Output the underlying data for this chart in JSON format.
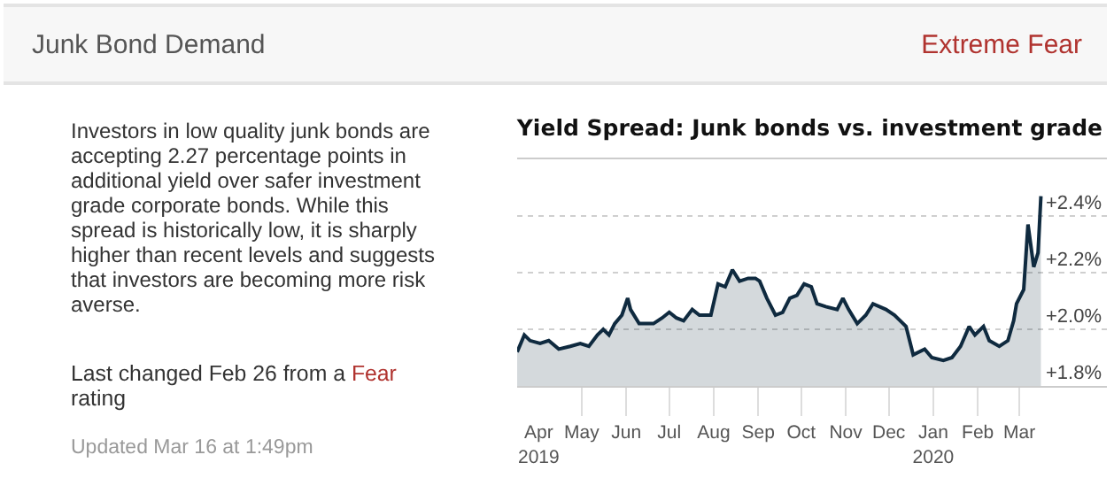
{
  "chart_data": [
    {
      "type": "other",
      "title": "Junk Bond Demand",
      "annotations": [
        "Extreme Fear",
        "Investors in low quality junk bonds are accepting 2.27 percentage points in additional yield over safer investment grade corporate bonds. While this spread is historically low, it is sharply higher than recent levels and suggests that investors are becoming more risk averse.",
        "Last changed Feb 26 from a",
        "Fear",
        "rating",
        "Updated Mar 16 at 1:49pm"
      ]
    },
    {
      "type": "area",
      "title": "Yield Spread: Junk bonds vs. investment grade",
      "x": [
        "2019-03-17",
        "2019-03-22",
        "2019-03-26",
        "2019-04-02",
        "2019-04-08",
        "2019-04-15",
        "2019-04-23",
        "2019-04-30",
        "2019-05-06",
        "2019-05-12",
        "2019-05-16",
        "2019-05-20",
        "2019-05-24",
        "2019-05-29",
        "2019-06-02",
        "2019-06-04",
        "2019-06-10",
        "2019-06-16",
        "2019-06-20",
        "2019-06-26",
        "2019-07-01",
        "2019-07-06",
        "2019-07-11",
        "2019-07-17",
        "2019-07-22",
        "2019-07-30",
        "2019-08-04",
        "2019-08-09",
        "2019-08-14",
        "2019-08-19",
        "2019-08-25",
        "2019-08-30",
        "2019-09-02",
        "2019-09-07",
        "2019-09-13",
        "2019-09-18",
        "2019-09-23",
        "2019-09-28",
        "2019-10-03",
        "2019-10-08",
        "2019-10-12",
        "2019-10-18",
        "2019-10-26",
        "2019-10-30",
        "2019-11-03",
        "2019-11-09",
        "2019-11-15",
        "2019-11-20",
        "2019-11-29",
        "2019-12-05",
        "2019-12-13",
        "2019-12-18",
        "2019-12-26",
        "2019-12-31",
        "2020-01-08",
        "2020-01-14",
        "2020-01-20",
        "2020-01-26",
        "2020-01-30",
        "2020-02-05",
        "2020-02-09",
        "2020-02-16",
        "2020-02-22",
        "2020-02-26",
        "2020-02-28",
        "2020-03-04",
        "2020-03-07",
        "2020-03-11",
        "2020-03-14",
        "2020-03-16"
      ],
      "series": [
        {
          "color": "#0f2a3f",
          "values": [
            1.92,
            1.98,
            1.96,
            1.95,
            1.96,
            1.93,
            1.94,
            1.95,
            1.94,
            1.98,
            2.0,
            1.98,
            2.02,
            2.05,
            2.11,
            2.07,
            2.02,
            2.02,
            2.02,
            2.04,
            2.06,
            2.04,
            2.03,
            2.07,
            2.05,
            2.05,
            2.16,
            2.15,
            2.21,
            2.17,
            2.18,
            2.18,
            2.17,
            2.11,
            2.05,
            2.06,
            2.11,
            2.12,
            2.16,
            2.15,
            2.09,
            2.08,
            2.07,
            2.11,
            2.07,
            2.02,
            2.05,
            2.09,
            2.07,
            2.05,
            2.01,
            1.91,
            1.93,
            1.9,
            1.89,
            1.9,
            1.94,
            2.01,
            1.98,
            2.01,
            1.96,
            1.94,
            1.96,
            2.03,
            2.09,
            2.14,
            2.37,
            2.22,
            2.27,
            2.47
          ]
        }
      ],
      "xlim": [
        "2019-03-17",
        "2020-05-01"
      ],
      "xticks": [
        {
          "value": "2019-04-01",
          "label": "Apr\n2019"
        },
        {
          "value": "2019-05-01",
          "label": "May"
        },
        {
          "value": "2019-06-01",
          "label": "Jun"
        },
        {
          "value": "2019-07-01",
          "label": "Jul"
        },
        {
          "value": "2019-08-01",
          "label": "Aug"
        },
        {
          "value": "2019-09-01",
          "label": "Sep"
        },
        {
          "value": "2019-10-01",
          "label": "Oct"
        },
        {
          "value": "2019-11-01",
          "label": "Nov"
        },
        {
          "value": "2019-12-01",
          "label": "Dec"
        },
        {
          "value": "2020-01-01",
          "label": "Jan\n2020"
        },
        {
          "value": "2020-02-01",
          "label": "Feb"
        },
        {
          "value": "2020-03-01",
          "label": "Mar"
        }
      ],
      "ylim": [
        1.8,
        2.6
      ],
      "yticks": [
        {
          "value": 1.8,
          "label": "+1.8%"
        },
        {
          "value": 2.0,
          "label": "+2.0%"
        },
        {
          "value": 2.2,
          "label": "+2.2%"
        },
        {
          "value": 2.4,
          "label": "+2.4%"
        }
      ],
      "grid": "y"
    }
  ]
}
